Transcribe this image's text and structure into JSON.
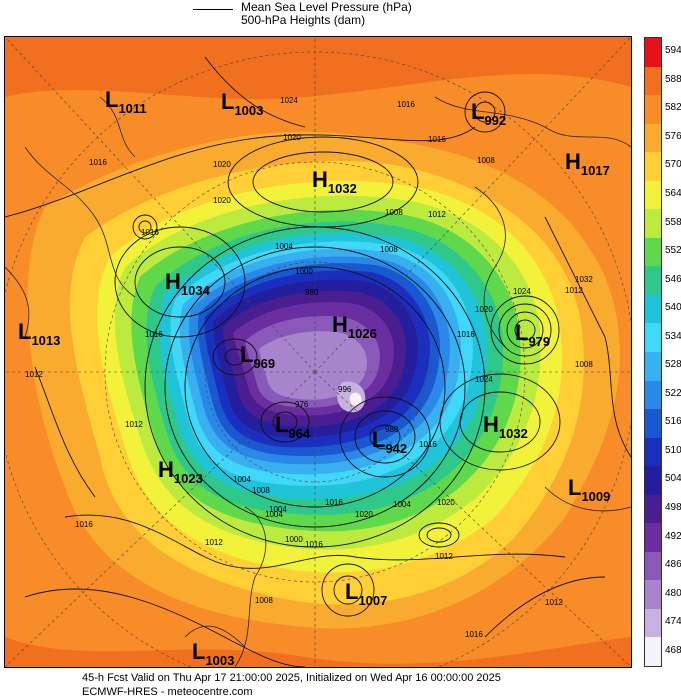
{
  "legend": {
    "line1": "Mean Sea Level Pressure (hPa)",
    "line2": "500-hPa Heights (dam)"
  },
  "colorbar": {
    "labels": [
      "594",
      "588",
      "582",
      "576",
      "570",
      "564",
      "558",
      "552",
      "546",
      "540",
      "534",
      "528",
      "522",
      "516",
      "510",
      "504",
      "498",
      "492",
      "486",
      "480",
      "474",
      "468"
    ],
    "colors": [
      "#e8101a",
      "#f07020",
      "#f88c28",
      "#f9ab30",
      "#fed035",
      "#f2f23a",
      "#bdea3f",
      "#5fd84c",
      "#2ec88a",
      "#20c4d8",
      "#40d8f8",
      "#38b0f0",
      "#2a88e8",
      "#1a58d0",
      "#1a2ec0",
      "#241e9e",
      "#4a1e90",
      "#6a2ea0",
      "#8a58b8",
      "#a884cc",
      "#c8b0e0",
      "#f6f2fa"
    ]
  },
  "map": {
    "pressure_centers": [
      {
        "letter": "L",
        "value": "1011"
      },
      {
        "letter": "L",
        "value": "1003"
      },
      {
        "letter": "L",
        "value": "992"
      },
      {
        "letter": "H",
        "value": "1032"
      },
      {
        "letter": "H",
        "value": "1017"
      },
      {
        "letter": "H",
        "value": "1034"
      },
      {
        "letter": "L",
        "value": "1013"
      },
      {
        "letter": "H",
        "value": "1026"
      },
      {
        "letter": "L",
        "value": "969"
      },
      {
        "letter": "L",
        "value": "979"
      },
      {
        "letter": "L",
        "value": "964"
      },
      {
        "letter": "L",
        "value": "942"
      },
      {
        "letter": "H",
        "value": "1032"
      },
      {
        "letter": "H",
        "value": "1023"
      },
      {
        "letter": "L",
        "value": "1009"
      },
      {
        "letter": "L",
        "value": "1007"
      },
      {
        "letter": "L",
        "value": "1003"
      }
    ],
    "contour_labels": [
      "1016",
      "1024",
      "1020",
      "1020",
      "1016",
      "1016",
      "1008",
      "1016",
      "1020",
      "1008",
      "1012",
      "1008",
      "1004",
      "1020",
      "1024",
      "1016",
      "1012",
      "1016",
      "1012",
      "1024",
      "1012",
      "1016",
      "1016",
      "1020",
      "1004",
      "1008",
      "1004",
      "1012",
      "1032",
      "1008",
      "988",
      "976",
      "980",
      "1000",
      "996",
      "1004",
      "1016",
      "1016",
      "1012",
      "1000",
      "1020",
      "1004",
      "1008",
      "1016",
      "1012"
    ]
  },
  "footer": {
    "line1": "45-h Fcst Valid on Thu Apr 17 21:00:00 2025, Initialized on Wed Apr 16 00:00:00 2025",
    "line2": "ECMWF-HRES  - meteocentre.com"
  }
}
